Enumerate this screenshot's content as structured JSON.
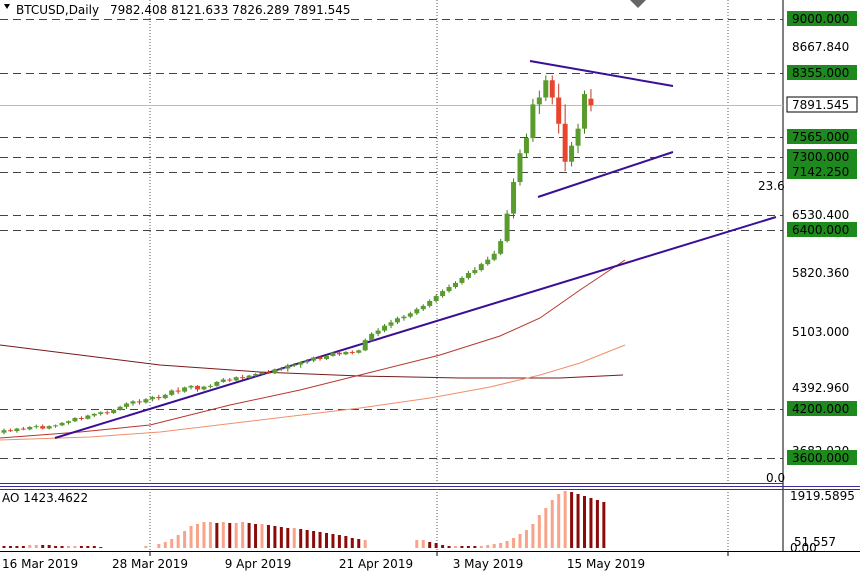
{
  "header": {
    "symbol_timeframe": "BTCUSD,Daily",
    "ohlc": "7982.408 8121.633 7826.289 7891.545"
  },
  "indicator": {
    "label": "AO 1423.4622",
    "axis_labels": [
      "1919.5895",
      "51.557",
      "0.00"
    ]
  },
  "fib_labels": [
    "0.0",
    "23.6"
  ],
  "colors": {
    "bull": "#5a9b2e",
    "bear": "#e8452e",
    "tag_bg": "#1e8a1e",
    "trendline": "#3a0f96",
    "ma_dark": "#7a1a1a",
    "ma_mid": "#b8362e",
    "ma_light": "#f0906a",
    "ao_up": "#f7a48a",
    "ao_down": "#8b0a0a"
  },
  "chart_data": {
    "type": "candlestick",
    "y_ticks": [
      "8667.840",
      "5820.360",
      "5103.000",
      "4392.960",
      "3682.920"
    ],
    "price_tags": [
      {
        "label": "9000.000",
        "value": 9000
      },
      {
        "label": "8355.000",
        "value": 8355
      },
      {
        "label": "7891.545",
        "value": 7891.545
      },
      {
        "label": "7565.000",
        "value": 7565
      },
      {
        "label": "7300.000",
        "value": 7300
      },
      {
        "label": "7142.250",
        "value": 7142.25
      },
      {
        "label": "6530.400",
        "value": 6530.4
      },
      {
        "label": "6400.000",
        "value": 6400
      },
      {
        "label": "4200.000",
        "value": 4200
      },
      {
        "label": "3600.000",
        "value": 3600
      }
    ],
    "x_labels": [
      "16 Mar 2019",
      "28 Mar 2019",
      "9 Apr 2019",
      "21 Apr 2019",
      "3 May 2019",
      "15 May 2019"
    ],
    "candles": [
      [
        3910,
        3960,
        3890,
        3940
      ],
      [
        3940,
        3960,
        3920,
        3930
      ],
      [
        3930,
        3970,
        3910,
        3960
      ],
      [
        3960,
        3980,
        3940,
        3950
      ],
      [
        3950,
        3990,
        3940,
        3980
      ],
      [
        3980,
        4010,
        3960,
        3990
      ],
      [
        3990,
        4010,
        3950,
        3960
      ],
      [
        3960,
        4000,
        3950,
        3990
      ],
      [
        3990,
        4010,
        3970,
        4000
      ],
      [
        4000,
        4040,
        3990,
        4030
      ],
      [
        4030,
        4060,
        4010,
        4050
      ],
      [
        4050,
        4100,
        4040,
        4090
      ],
      [
        4090,
        4110,
        4060,
        4080
      ],
      [
        4080,
        4130,
        4070,
        4120
      ],
      [
        4120,
        4150,
        4100,
        4140
      ],
      [
        4140,
        4170,
        4120,
        4160
      ],
      [
        4160,
        4180,
        4130,
        4150
      ],
      [
        4150,
        4200,
        4140,
        4190
      ],
      [
        4190,
        4230,
        4180,
        4220
      ],
      [
        4220,
        4260,
        4200,
        4250
      ],
      [
        4250,
        4280,
        4230,
        4270
      ],
      [
        4270,
        4290,
        4240,
        4260
      ],
      [
        4260,
        4300,
        4250,
        4290
      ],
      [
        4290,
        4320,
        4270,
        4310
      ],
      [
        4310,
        4330,
        4280,
        4300
      ],
      [
        4300,
        4340,
        4290,
        4330
      ],
      [
        4330,
        4380,
        4320,
        4370
      ],
      [
        4370,
        4400,
        4340,
        4360
      ],
      [
        4360,
        4410,
        4350,
        4400
      ],
      [
        4400,
        4430,
        4380,
        4420
      ],
      [
        4420,
        4430,
        4360,
        4380
      ],
      [
        4380,
        4420,
        4370,
        4410
      ],
      [
        4410,
        4440,
        4390,
        4420
      ],
      [
        4420,
        4480,
        4410,
        4470
      ],
      [
        4470,
        4520,
        4460,
        4500
      ],
      [
        4500,
        4520,
        4470,
        4490
      ],
      [
        4490,
        4540,
        4480,
        4530
      ],
      [
        4530,
        4560,
        4500,
        4520
      ],
      [
        4520,
        4560,
        4510,
        4550
      ],
      [
        4550,
        4580,
        4530,
        4570
      ],
      [
        4570,
        4600,
        4550,
        4590
      ],
      [
        4590,
        4620,
        4570,
        4580
      ],
      [
        4580,
        4640,
        4570,
        4630
      ],
      [
        4630,
        4660,
        4610,
        4640
      ],
      [
        4640,
        4700,
        4600,
        4680
      ],
      [
        4680,
        4710,
        4660,
        4690
      ],
      [
        4690,
        4730,
        4650,
        4720
      ],
      [
        4720,
        4760,
        4700,
        4740
      ],
      [
        4740,
        4790,
        4720,
        4780
      ],
      [
        4780,
        4800,
        4740,
        4760
      ],
      [
        4760,
        4810,
        4750,
        4800
      ],
      [
        4800,
        4850,
        4790,
        4840
      ],
      [
        4840,
        4860,
        4800,
        4820
      ],
      [
        4820,
        4860,
        4810,
        4850
      ],
      [
        4850,
        4870,
        4820,
        4840
      ],
      [
        4840,
        4880,
        4830,
        4870
      ],
      [
        4870,
        5020,
        4860,
        5000
      ],
      [
        5000,
        5100,
        4980,
        5080
      ],
      [
        5080,
        5150,
        5050,
        5120
      ],
      [
        5120,
        5200,
        5100,
        5180
      ],
      [
        5180,
        5250,
        5150,
        5220
      ],
      [
        5220,
        5290,
        5200,
        5270
      ],
      [
        5270,
        5310,
        5240,
        5290
      ],
      [
        5290,
        5350,
        5270,
        5330
      ],
      [
        5330,
        5400,
        5310,
        5380
      ],
      [
        5380,
        5440,
        5360,
        5420
      ],
      [
        5420,
        5500,
        5400,
        5480
      ],
      [
        5480,
        5560,
        5460,
        5540
      ],
      [
        5540,
        5620,
        5520,
        5600
      ],
      [
        5600,
        5680,
        5580,
        5650
      ],
      [
        5650,
        5720,
        5630,
        5700
      ],
      [
        5700,
        5780,
        5680,
        5760
      ],
      [
        5760,
        5850,
        5740,
        5820
      ],
      [
        5820,
        5900,
        5800,
        5860
      ],
      [
        5860,
        5960,
        5840,
        5940
      ],
      [
        5940,
        6040,
        5920,
        6000
      ],
      [
        6000,
        6120,
        5980,
        6080
      ],
      [
        6080,
        6280,
        6060,
        6250
      ],
      [
        6250,
        6600,
        6230,
        6550
      ],
      [
        6550,
        7050,
        6500,
        7000
      ],
      [
        7000,
        7400,
        6950,
        7350
      ],
      [
        7350,
        7600,
        7300,
        7550
      ],
      [
        7550,
        7980,
        7500,
        7900
      ],
      [
        7900,
        8100,
        7800,
        8000
      ],
      [
        8000,
        8320,
        7950,
        8250
      ],
      [
        8250,
        8320,
        7900,
        8000
      ],
      [
        8000,
        8200,
        7600,
        7700
      ],
      [
        7700,
        7900,
        7150,
        7250
      ],
      [
        7250,
        7500,
        7200,
        7450
      ],
      [
        7450,
        7700,
        7350,
        7650
      ],
      [
        7650,
        8100,
        7600,
        8050
      ],
      [
        7982.408,
        8121.633,
        7826.289,
        7891.545
      ]
    ]
  }
}
